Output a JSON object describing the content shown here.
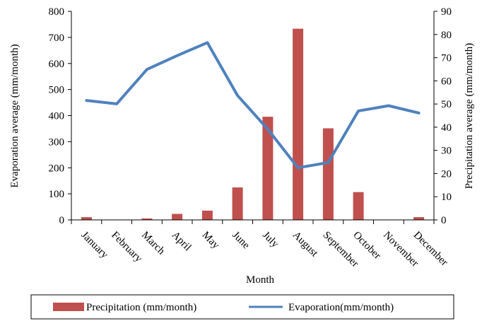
{
  "chart_data": {
    "type": "bar+line",
    "categories": [
      "January",
      "February",
      "March",
      "April",
      "May",
      "June",
      "July",
      "August",
      "September",
      "October",
      "November",
      "December"
    ],
    "series": [
      {
        "name": "Precipitation (mm/month)",
        "type": "bar",
        "axis": "right",
        "color": "#C0504D",
        "values": [
          1.2,
          0,
          0.6,
          2.6,
          4.0,
          14.0,
          44.5,
          82.5,
          39.5,
          12.0,
          0,
          1.2
        ]
      },
      {
        "name": "Evaporation(mm/month)",
        "type": "line",
        "axis": "left",
        "color": "#4F81BD",
        "values": [
          458,
          445,
          577,
          630,
          680,
          477,
          348,
          200,
          220,
          418,
          438,
          410
        ]
      }
    ],
    "xlabel": "Month",
    "ylabel_left": "Evaporation average (mm/month)",
    "ylabel_right": "Precipitation average (mm/month)",
    "ylim_left": [
      0,
      800
    ],
    "yticks_left": [
      "0",
      "100",
      "200",
      "300",
      "400",
      "500",
      "600",
      "700",
      "800"
    ],
    "ylim_right": [
      0,
      90
    ],
    "yticks_right": [
      "0",
      "10",
      "20",
      "30",
      "40",
      "50",
      "60",
      "70",
      "80",
      "90"
    ],
    "grid": false,
    "legend_position": "bottom"
  }
}
